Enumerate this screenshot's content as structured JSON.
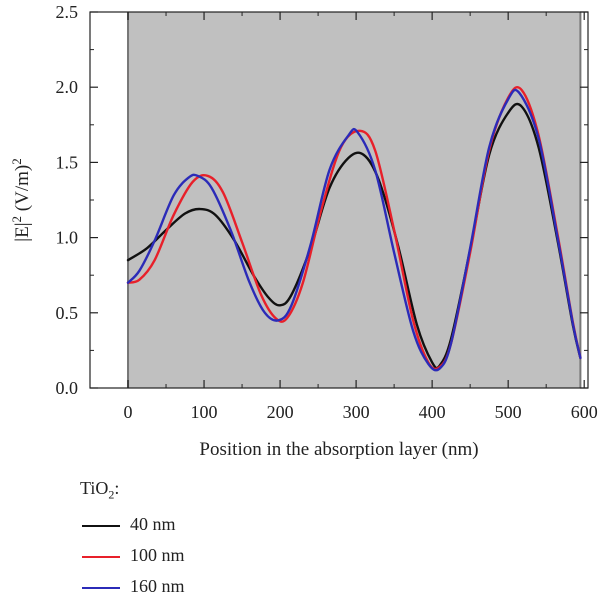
{
  "chart_data": {
    "type": "line",
    "xlabel": "Position in the absorption layer (nm)",
    "ylabel": {
      "base": "|E|",
      "exp1": "2",
      "unit": " (V/m)",
      "exp2": "2"
    },
    "xlim": [
      -50,
      605
    ],
    "ylim": [
      0,
      2.5
    ],
    "xticks": [
      0,
      100,
      200,
      300,
      400,
      500,
      600
    ],
    "yticks": [
      0.0,
      0.5,
      1.0,
      1.5,
      2.0,
      2.5
    ],
    "xtick_labels": [
      "0",
      "100",
      "200",
      "300",
      "400",
      "500",
      "600"
    ],
    "ytick_labels": [
      "0.0",
      "0.5",
      "1.0",
      "1.5",
      "2.0",
      "2.5"
    ],
    "shaded_region": [
      0,
      595
    ],
    "shaded_color": "#c0c0c0",
    "legend_title": {
      "base": "TiO",
      "sub": "2",
      "suffix": ":"
    },
    "series": [
      {
        "name": "40 nm",
        "color": "#111111",
        "x": [
          0,
          25,
          50,
          75,
          95,
          115,
          140,
          165,
          185,
          200,
          215,
          240,
          265,
          290,
          310,
          330,
          355,
          380,
          400,
          410,
          425,
          450,
          475,
          500,
          518,
          540,
          565,
          585,
          595
        ],
        "y": [
          0.85,
          0.93,
          1.05,
          1.16,
          1.19,
          1.15,
          0.98,
          0.75,
          0.6,
          0.55,
          0.62,
          0.93,
          1.33,
          1.53,
          1.55,
          1.38,
          0.95,
          0.42,
          0.17,
          0.15,
          0.33,
          0.92,
          1.55,
          1.83,
          1.87,
          1.6,
          0.98,
          0.42,
          0.2
        ]
      },
      {
        "name": "100 nm",
        "color": "#e8202a",
        "x": [
          0,
          15,
          35,
          60,
          85,
          105,
          125,
          150,
          175,
          195,
          210,
          230,
          255,
          280,
          305,
          325,
          350,
          375,
          395,
          410,
          425,
          450,
          475,
          500,
          518,
          540,
          565,
          585,
          595
        ],
        "y": [
          0.7,
          0.72,
          0.85,
          1.15,
          1.37,
          1.41,
          1.3,
          0.97,
          0.62,
          0.46,
          0.47,
          0.7,
          1.2,
          1.6,
          1.71,
          1.58,
          1.05,
          0.45,
          0.17,
          0.14,
          0.3,
          0.9,
          1.58,
          1.93,
          1.98,
          1.68,
          1.02,
          0.44,
          0.2
        ]
      },
      {
        "name": "160 nm",
        "color": "#2b2bb8",
        "x": [
          0,
          15,
          35,
          60,
          80,
          92,
          110,
          135,
          160,
          180,
          198,
          215,
          240,
          265,
          290,
          302,
          325,
          350,
          375,
          395,
          410,
          425,
          450,
          475,
          500,
          515,
          540,
          565,
          585,
          595
        ],
        "y": [
          0.7,
          0.78,
          0.98,
          1.28,
          1.4,
          1.41,
          1.33,
          1.05,
          0.7,
          0.5,
          0.45,
          0.55,
          0.95,
          1.45,
          1.68,
          1.7,
          1.45,
          0.9,
          0.38,
          0.16,
          0.13,
          0.3,
          0.93,
          1.6,
          1.92,
          1.96,
          1.66,
          1.0,
          0.43,
          0.2
        ]
      }
    ]
  }
}
